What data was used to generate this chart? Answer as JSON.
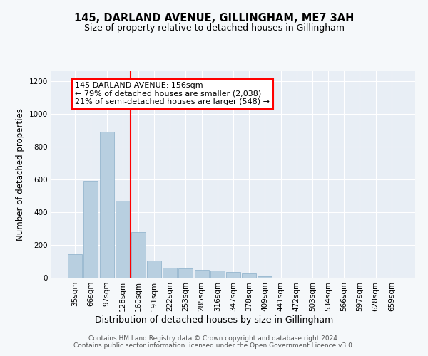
{
  "title1": "145, DARLAND AVENUE, GILLINGHAM, ME7 3AH",
  "title2": "Size of property relative to detached houses in Gillingham",
  "xlabel": "Distribution of detached houses by size in Gillingham",
  "ylabel": "Number of detached properties",
  "categories": [
    "35sqm",
    "66sqm",
    "97sqm",
    "128sqm",
    "160sqm",
    "191sqm",
    "222sqm",
    "253sqm",
    "285sqm",
    "316sqm",
    "347sqm",
    "378sqm",
    "409sqm",
    "441sqm",
    "472sqm",
    "503sqm",
    "534sqm",
    "566sqm",
    "597sqm",
    "628sqm",
    "659sqm"
  ],
  "values": [
    145,
    590,
    890,
    470,
    280,
    105,
    60,
    55,
    47,
    42,
    33,
    25,
    10,
    0,
    0,
    0,
    0,
    0,
    0,
    0,
    0
  ],
  "bar_color": "#b8cfe0",
  "bar_edge_color": "#8aaec8",
  "vline_x": 3.5,
  "vline_color": "red",
  "annotation_text": "145 DARLAND AVENUE: 156sqm\n← 79% of detached houses are smaller (2,038)\n21% of semi-detached houses are larger (548) →",
  "annotation_box_color": "white",
  "annotation_box_edge": "red",
  "ylim": [
    0,
    1260
  ],
  "yticks": [
    0,
    200,
    400,
    600,
    800,
    1000,
    1200
  ],
  "footer": "Contains HM Land Registry data © Crown copyright and database right 2024.\nContains public sector information licensed under the Open Government Licence v3.0.",
  "bg_color": "#f5f8fa",
  "plot_bg_color": "#e8eef5",
  "title1_fontsize": 10.5,
  "title2_fontsize": 9,
  "ylabel_fontsize": 8.5,
  "xlabel_fontsize": 9,
  "tick_fontsize": 7.5,
  "annot_fontsize": 8
}
